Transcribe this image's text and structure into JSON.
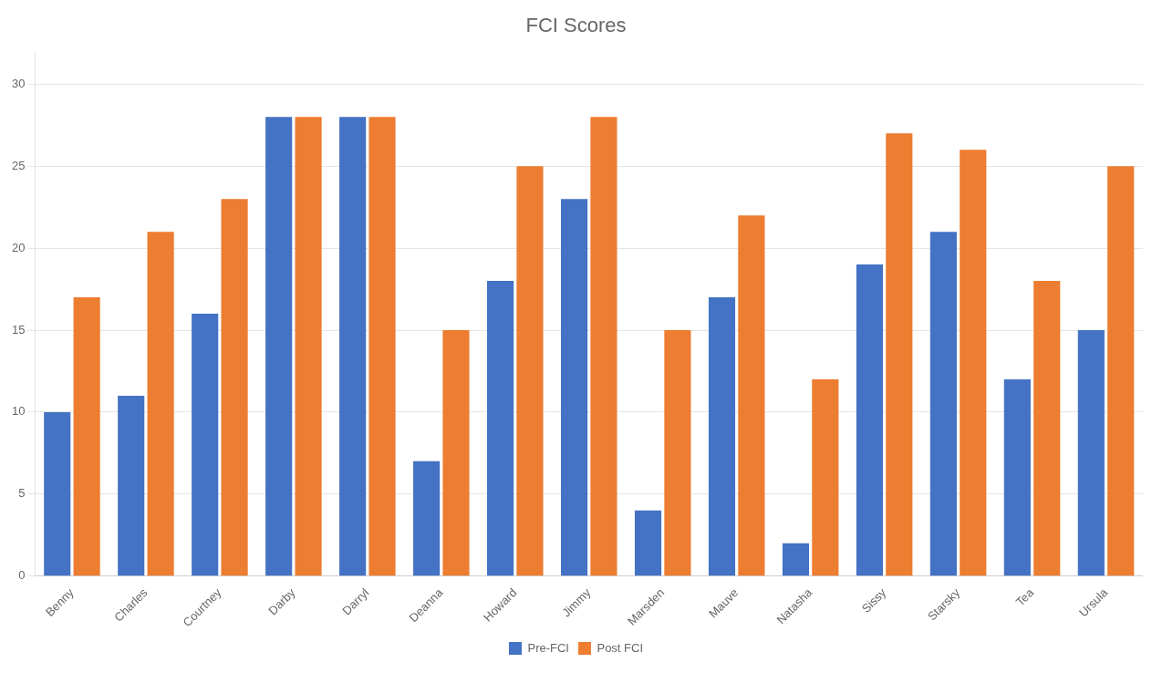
{
  "chart_data": {
    "type": "bar",
    "title": "FCI Scores",
    "categories": [
      "Benny",
      "Charles",
      "Courtney",
      "Darby",
      "Darryl",
      "Deanna",
      "Howard",
      "Jimmy",
      "Marsden",
      "Mauve",
      "Natasha",
      "Sissy",
      "Starsky",
      "Tea",
      "Ursula"
    ],
    "series": [
      {
        "name": "Pre-FCI",
        "color": "#4472C4",
        "values": [
          10,
          11,
          16,
          28,
          28,
          7,
          18,
          23,
          4,
          17,
          2,
          19,
          21,
          12,
          15
        ]
      },
      {
        "name": "Post FCI",
        "color": "#ED7D31",
        "values": [
          17,
          21,
          23,
          28,
          28,
          15,
          25,
          28,
          15,
          22,
          12,
          27,
          26,
          18,
          25
        ]
      }
    ],
    "ylim": [
      0,
      32
    ],
    "yticks": [
      0,
      5,
      10,
      15,
      20,
      25,
      30
    ],
    "grid": "y",
    "legend": "bottom"
  }
}
